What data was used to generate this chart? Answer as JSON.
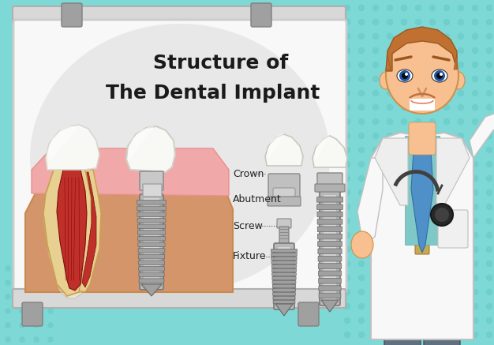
{
  "title_line1": "Structure of",
  "title_line2": "The Dental Implant",
  "bg_color": "#7ed8d5",
  "dot_color": "#6ecfcc",
  "labels": [
    "Crown",
    "Abutment",
    "Screw",
    "Fixture"
  ],
  "title_fontsize": 18,
  "label_fontsize": 9,
  "gum_color": "#d4956a",
  "gum_sandy": "#c8894e",
  "gum_pink": "#f0a8a8",
  "gum_pink2": "#e89090",
  "tooth_yellow": "#e8d090",
  "tooth_cream": "#f5f0e0",
  "tooth_white": "#f8f8f4",
  "nerve_red": "#c0302a",
  "nerve_dark": "#7a1010",
  "implant_gray1": "#c0c0c0",
  "implant_gray2": "#989898",
  "implant_gray3": "#787878",
  "implant_light": "#e0e0e0",
  "doctor_coat": "#f8f8f8",
  "doctor_shirt": "#80c8c8",
  "doctor_tie": "#5090c8",
  "doctor_skin": "#f8c090",
  "doctor_hair": "#c07030",
  "doctor_pants": "#607080",
  "doctor_steth": "#404040"
}
